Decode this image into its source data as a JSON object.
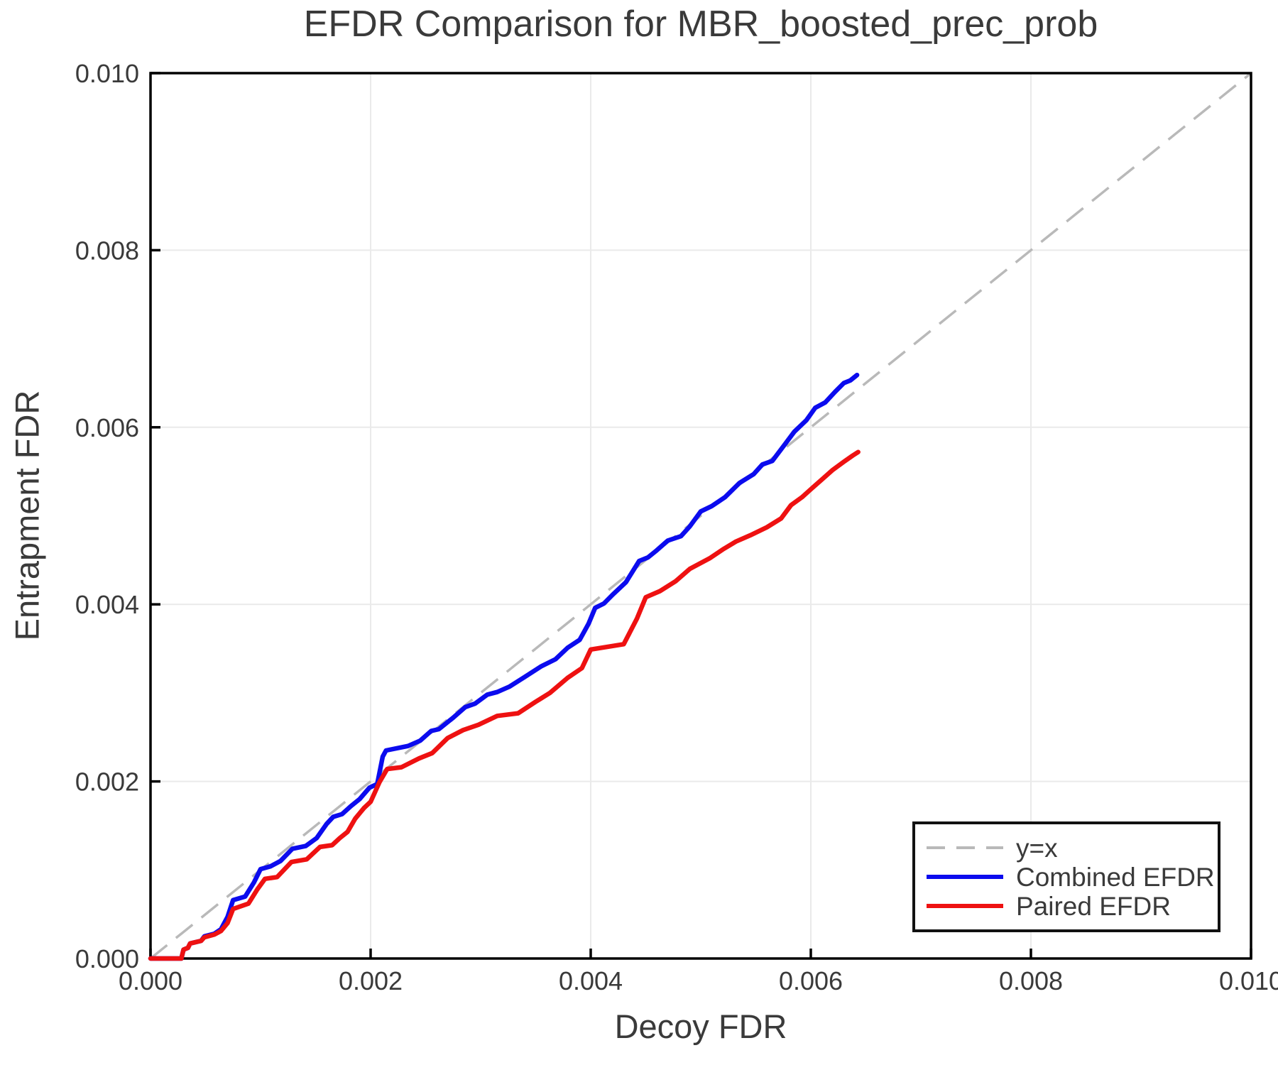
{
  "title": "EFDR Comparison for MBR_boosted_prec_prob",
  "axes": {
    "xlabel": "Decoy FDR",
    "ylabel": "Entrapment FDR"
  },
  "legend": {
    "entries": [
      "y=x",
      "Combined EFDR",
      "Paired EFDR"
    ]
  },
  "chart_data": {
    "type": "line",
    "title": "EFDR Comparison for MBR_boosted_prec_prob",
    "xlabel": "Decoy FDR",
    "ylabel": "Entrapment FDR",
    "xlim": [
      0.0,
      0.01
    ],
    "ylim": [
      0.0,
      0.01
    ],
    "grid": true,
    "grid_color": "#eaeaea",
    "spine_color": "#000000",
    "legend_position": "lower right",
    "x_ticks": {
      "values": [
        0.0,
        0.002,
        0.004,
        0.006,
        0.008,
        0.01
      ],
      "labels": [
        "0.000",
        "0.002",
        "0.004",
        "0.006",
        "0.008",
        "0.010"
      ]
    },
    "y_ticks": {
      "values": [
        0.0,
        0.002,
        0.004,
        0.006,
        0.008,
        0.01
      ],
      "labels": [
        "0.000",
        "0.002",
        "0.004",
        "0.006",
        "0.008",
        "0.010"
      ]
    },
    "series": [
      {
        "name": "y=x",
        "style": "dashed",
        "color": "#b9b9b9",
        "width": 3.5,
        "dash": [
          30,
          16
        ],
        "points": [
          [
            0.0,
            0.0
          ],
          [
            0.01,
            0.01
          ]
        ]
      },
      {
        "name": "Combined EFDR",
        "style": "solid",
        "color": "#0b0bee",
        "width": 6.5,
        "points": [
          [
            0,
            0
          ],
          [
            0.00028,
            0
          ],
          [
            0.0003,
            0.0001
          ],
          [
            0.00034,
            0.00012
          ],
          [
            0.00036,
            0.00017
          ],
          [
            0.00046,
            0.0002
          ],
          [
            0.00049,
            0.00025
          ],
          [
            0.00058,
            0.00028
          ],
          [
            0.00064,
            0.00033
          ],
          [
            0.0007,
            0.00047
          ],
          [
            0.00075,
            0.00066
          ],
          [
            0.00086,
            0.0007
          ],
          [
            0.00094,
            0.00086
          ],
          [
            0.001,
            0.00101
          ],
          [
            0.00109,
            0.00104
          ],
          [
            0.00118,
            0.0011
          ],
          [
            0.00129,
            0.00124
          ],
          [
            0.00141,
            0.00127
          ],
          [
            0.00151,
            0.00136
          ],
          [
            0.0016,
            0.00152
          ],
          [
            0.00166,
            0.0016
          ],
          [
            0.00174,
            0.00163
          ],
          [
            0.00182,
            0.00172
          ],
          [
            0.0019,
            0.0018
          ],
          [
            0.00199,
            0.00193
          ],
          [
            0.00206,
            0.00197
          ],
          [
            0.00211,
            0.00228
          ],
          [
            0.00214,
            0.00235
          ],
          [
            0.00234,
            0.0024
          ],
          [
            0.00245,
            0.00246
          ],
          [
            0.00255,
            0.00257
          ],
          [
            0.00262,
            0.00259
          ],
          [
            0.00275,
            0.00272
          ],
          [
            0.00286,
            0.00284
          ],
          [
            0.00295,
            0.00288
          ],
          [
            0.00306,
            0.00298
          ],
          [
            0.00315,
            0.00301
          ],
          [
            0.00326,
            0.00307
          ],
          [
            0.0034,
            0.00318
          ],
          [
            0.00355,
            0.0033
          ],
          [
            0.00368,
            0.00338
          ],
          [
            0.00379,
            0.00351
          ],
          [
            0.0039,
            0.0036
          ],
          [
            0.00398,
            0.00378
          ],
          [
            0.00404,
            0.00396
          ],
          [
            0.00412,
            0.00401
          ],
          [
            0.0042,
            0.00411
          ],
          [
            0.00432,
            0.00425
          ],
          [
            0.00444,
            0.00449
          ],
          [
            0.00452,
            0.00453
          ],
          [
            0.0046,
            0.00461
          ],
          [
            0.0047,
            0.00472
          ],
          [
            0.00482,
            0.00477
          ],
          [
            0.0049,
            0.00488
          ],
          [
            0.005,
            0.00505
          ],
          [
            0.0051,
            0.00511
          ],
          [
            0.00522,
            0.00521
          ],
          [
            0.00535,
            0.00537
          ],
          [
            0.00548,
            0.00547
          ],
          [
            0.00556,
            0.00558
          ],
          [
            0.00565,
            0.00562
          ],
          [
            0.00576,
            0.0058
          ],
          [
            0.00585,
            0.00595
          ],
          [
            0.00596,
            0.00608
          ],
          [
            0.00604,
            0.00622
          ],
          [
            0.00613,
            0.00628
          ],
          [
            0.00622,
            0.0064
          ],
          [
            0.0063,
            0.0065
          ],
          [
            0.00636,
            0.00653
          ],
          [
            0.00642,
            0.00659
          ]
        ]
      },
      {
        "name": "Paired EFDR",
        "style": "solid",
        "color": "#ee1111",
        "width": 6.5,
        "points": [
          [
            0,
            0
          ],
          [
            0.00028,
            0
          ],
          [
            0.0003,
            0.0001
          ],
          [
            0.00034,
            0.00012
          ],
          [
            0.00036,
            0.00017
          ],
          [
            0.00046,
            0.0002
          ],
          [
            0.00049,
            0.00024
          ],
          [
            0.00058,
            0.00027
          ],
          [
            0.00064,
            0.00031
          ],
          [
            0.0007,
            0.0004
          ],
          [
            0.00075,
            0.00056
          ],
          [
            0.00089,
            0.00062
          ],
          [
            0.00097,
            0.00078
          ],
          [
            0.00104,
            0.0009
          ],
          [
            0.00115,
            0.00092
          ],
          [
            0.00128,
            0.00109
          ],
          [
            0.00142,
            0.00112
          ],
          [
            0.00154,
            0.00126
          ],
          [
            0.00165,
            0.00128
          ],
          [
            0.00172,
            0.00136
          ],
          [
            0.00179,
            0.00143
          ],
          [
            0.00186,
            0.00158
          ],
          [
            0.00194,
            0.0017
          ],
          [
            0.002,
            0.00177
          ],
          [
            0.00208,
            0.00199
          ],
          [
            0.00215,
            0.00214
          ],
          [
            0.00228,
            0.00216
          ],
          [
            0.00244,
            0.00226
          ],
          [
            0.00256,
            0.00232
          ],
          [
            0.0027,
            0.00249
          ],
          [
            0.00284,
            0.00258
          ],
          [
            0.00298,
            0.00264
          ],
          [
            0.00315,
            0.00274
          ],
          [
            0.00334,
            0.00277
          ],
          [
            0.0035,
            0.0029
          ],
          [
            0.00363,
            0.003
          ],
          [
            0.00379,
            0.00317
          ],
          [
            0.00392,
            0.00328
          ],
          [
            0.004,
            0.00349
          ],
          [
            0.00415,
            0.00352
          ],
          [
            0.0043,
            0.00355
          ],
          [
            0.00442,
            0.00384
          ],
          [
            0.0045,
            0.00408
          ],
          [
            0.00463,
            0.00415
          ],
          [
            0.00477,
            0.00426
          ],
          [
            0.0049,
            0.0044
          ],
          [
            0.00508,
            0.00452
          ],
          [
            0.0052,
            0.00462
          ],
          [
            0.00532,
            0.00471
          ],
          [
            0.00545,
            0.00478
          ],
          [
            0.0056,
            0.00487
          ],
          [
            0.00573,
            0.00497
          ],
          [
            0.00582,
            0.00512
          ],
          [
            0.00592,
            0.00521
          ],
          [
            0.006,
            0.0053
          ],
          [
            0.0061,
            0.00541
          ],
          [
            0.0062,
            0.00552
          ],
          [
            0.0063,
            0.00561
          ],
          [
            0.00638,
            0.00568
          ],
          [
            0.00643,
            0.00572
          ]
        ]
      }
    ]
  }
}
